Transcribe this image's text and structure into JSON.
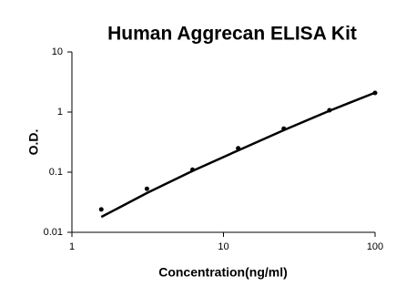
{
  "chart_data": {
    "type": "scatter",
    "title": "Human Aggrecan ELISA Kit",
    "x_label": "Concentration(ng/ml)",
    "y_label": "O.D.",
    "log_x": true,
    "log_y": true,
    "grid": false,
    "xlim": [
      1,
      100
    ],
    "xticks": [
      1,
      10,
      100
    ],
    "ylim": [
      0.01,
      10
    ],
    "yticks": [
      0.01,
      0.1,
      1,
      10
    ],
    "series": [
      {
        "type": "scatter",
        "color": "#000000",
        "x": [
          1.5625,
          3.125,
          6.25,
          12.5,
          25,
          50,
          100
        ],
        "values": [
          0.024,
          0.053,
          0.11,
          0.25,
          0.53,
          1.07,
          2.08
        ]
      },
      {
        "type": "line",
        "color": "#000000",
        "x": [
          1.5625,
          3.125,
          6.25,
          12.5,
          25,
          50,
          100
        ],
        "values": [
          0.018,
          0.045,
          0.105,
          0.23,
          0.5,
          1.05,
          2.1
        ]
      }
    ]
  }
}
